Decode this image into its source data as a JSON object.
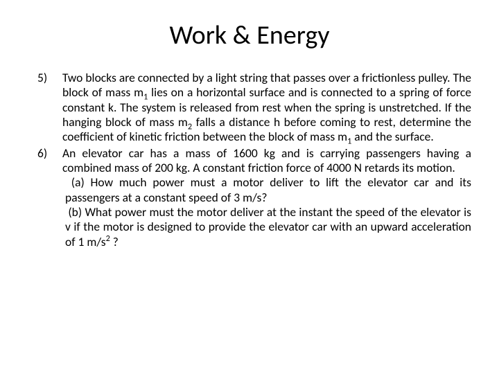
{
  "title": "Work & Energy",
  "items": [
    {
      "num": "5)",
      "text": "Two blocks are connected by a light string that passes over a frictionless pulley. The block of mass m₁ lies on a horizontal surface and is connected to a spring of force constant k. The system is released from rest when the spring is unstretched. If the hanging block of mass m₂ falls a distance h before coming to rest, determine the coefficient of kinetic friction between the block of mass m₁ and the surface."
    },
    {
      "num": "6)",
      "text": "An elevator car has a mass of 1600 kg and is carrying passengers having a combined mass of 200 kg. A constant friction force of 4000 N retards its motion.",
      "subparts": [
        "(a) How much power must a motor deliver to lift the elevator car and its passengers at a constant speed of 3 m/s?",
        "(b) What power must the motor deliver at the instant the speed of the elevator is v if the motor is designed to provide the elevator car with an upward acceleration of 1 m/s² ?"
      ]
    }
  ],
  "colors": {
    "background": "#ffffff",
    "text": "#000000"
  },
  "fonts": {
    "title_size_pt": 28,
    "body_size_pt": 13,
    "family": "Calibri"
  }
}
